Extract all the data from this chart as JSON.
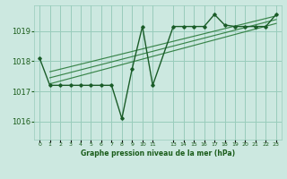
{
  "bg_color": "#cce8e0",
  "grid_color": "#99ccbb",
  "line_color": "#1a5c28",
  "band_color": "#2a7a3a",
  "xlabel": "Graphe pression niveau de la mer (hPa)",
  "xlabel_color": "#1a5c1a",
  "ylabel_color": "#1a5c1a",
  "yticks": [
    1016,
    1017,
    1018,
    1019
  ],
  "ylim": [
    1015.4,
    1019.85
  ],
  "xlim": [
    -0.5,
    23.5
  ],
  "main_line_x": [
    0,
    1,
    2,
    3,
    4,
    5,
    6,
    7,
    8,
    9,
    10,
    11,
    13,
    14,
    15,
    16,
    17,
    18,
    19,
    20,
    21,
    22,
    23
  ],
  "main_line_y": [
    1018.1,
    1017.2,
    1017.2,
    1017.2,
    1017.2,
    1017.2,
    1017.2,
    1017.2,
    1016.1,
    1017.75,
    1019.15,
    1017.2,
    1019.15,
    1019.15,
    1019.15,
    1019.15,
    1019.55,
    1019.2,
    1019.15,
    1019.15,
    1019.15,
    1019.15,
    1019.55
  ],
  "band_line1_x": [
    1,
    23
  ],
  "band_line1_y": [
    1017.25,
    1019.25
  ],
  "band_line2_x": [
    1,
    23
  ],
  "band_line2_y": [
    1017.45,
    1019.38
  ],
  "band_line3_x": [
    1,
    23
  ],
  "band_line3_y": [
    1017.65,
    1019.5
  ],
  "xtick_positions": [
    0,
    1,
    2,
    3,
    4,
    5,
    6,
    7,
    8,
    9,
    10,
    11,
    13,
    14,
    15,
    16,
    17,
    18,
    19,
    20,
    21,
    22,
    23
  ],
  "xtick_labels": [
    "0",
    "1",
    "2",
    "3",
    "4",
    "5",
    "6",
    "7",
    "8",
    "9",
    "10",
    "11",
    "13",
    "14",
    "15",
    "16",
    "17",
    "18",
    "19",
    "20",
    "21",
    "22",
    "23"
  ]
}
